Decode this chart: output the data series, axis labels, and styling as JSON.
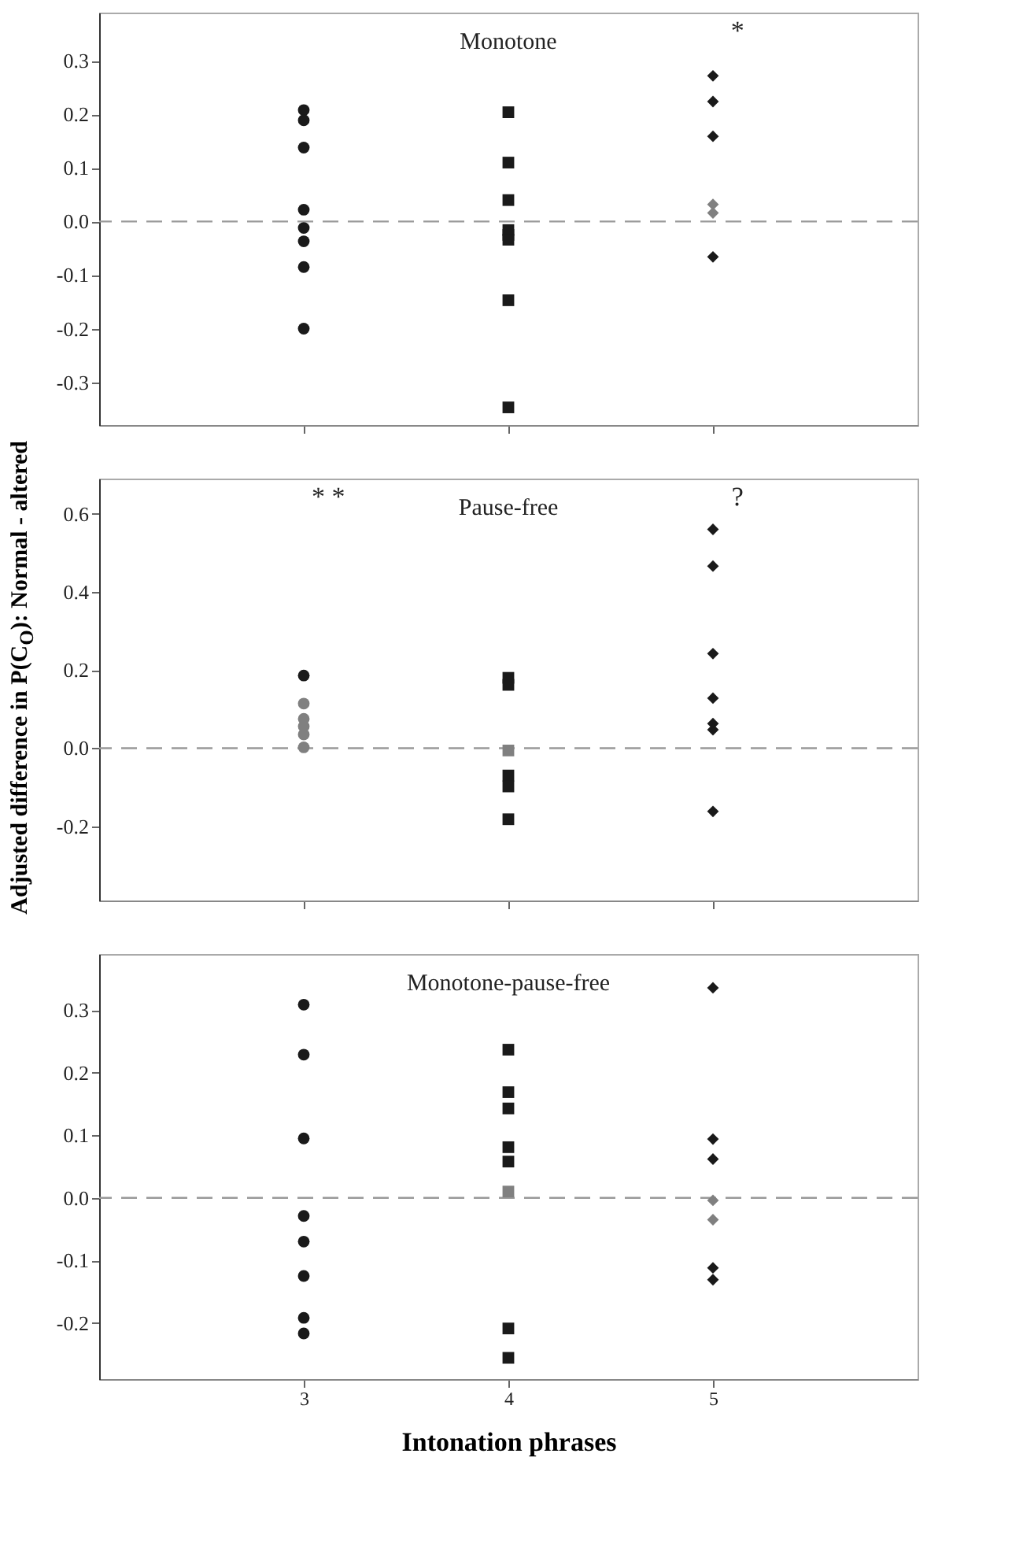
{
  "chart_data": [
    {
      "type": "scatter",
      "title": "Monotone",
      "xlim": [
        2,
        6
      ],
      "xticks": [
        3,
        4,
        5
      ],
      "tick_labels": "y",
      "ylim": [
        -0.38,
        0.39
      ],
      "yticks": [
        {
          "value": -0.3,
          "label": "-0.3"
        },
        {
          "value": -0.2,
          "label": "-0.2"
        },
        {
          "value": -0.1,
          "label": "-0.1"
        },
        {
          "value": 0,
          "label": "0.0"
        },
        {
          "value": 0.1,
          "label": "0.1"
        },
        {
          "value": 0.2,
          "label": "0.2"
        },
        {
          "value": 0.3,
          "label": "0.3"
        }
      ],
      "ref_lines": [
        {
          "axis": "y",
          "value": 0,
          "color": "#999999",
          "line_style": "dashed"
        }
      ],
      "annotations": [
        "*"
      ],
      "series": [
        {
          "color": "#1a1a1a",
          "marker": "circle",
          "x": [
            3,
            3,
            3,
            3,
            3,
            3,
            3,
            3
          ],
          "values": [
            0.208,
            0.189,
            0.138,
            0.022,
            -0.012,
            -0.037,
            -0.085,
            -0.2
          ]
        },
        {
          "color": "#1a1a1a",
          "marker": "square",
          "x": [
            4,
            4,
            4,
            4,
            4,
            4,
            4,
            4
          ],
          "values": [
            0.204,
            0.11,
            0.04,
            -0.016,
            -0.025,
            -0.034,
            -0.147,
            -0.347
          ]
        },
        {
          "color": "#1a1a1a",
          "marker": "diamond",
          "x": [
            5,
            5,
            5,
            5
          ],
          "values": [
            0.272,
            0.224,
            0.159,
            -0.066
          ]
        },
        {
          "color": "#808080",
          "marker": "diamond",
          "x": [
            5,
            5
          ],
          "values": [
            0.032,
            0.016
          ]
        }
      ]
    },
    {
      "type": "scatter",
      "title": "Pause-free",
      "ylabel": "Adjusted difference in P(C$_{O}$): Normal - altered",
      "xlim": [
        2,
        6
      ],
      "xticks": [
        3,
        4,
        5
      ],
      "tick_labels": "y",
      "ylim": [
        -0.39,
        0.69
      ],
      "yticks": [
        {
          "value": -0.2,
          "label": "-0.2"
        },
        {
          "value": 0,
          "label": "0.0"
        },
        {
          "value": 0.2,
          "label": "0.2"
        },
        {
          "value": 0.4,
          "label": "0.4"
        },
        {
          "value": 0.6,
          "label": "0.6"
        }
      ],
      "ref_lines": [
        {
          "axis": "y",
          "value": 0,
          "color": "#999999",
          "line_style": "dashed"
        }
      ],
      "annotations": [
        "* *",
        "?"
      ],
      "series": [
        {
          "color": "#1a1a1a",
          "marker": "circle",
          "x": [
            3
          ],
          "values": [
            0.186
          ]
        },
        {
          "color": "#808080",
          "marker": "circle",
          "x": [
            3,
            3,
            3,
            3,
            3
          ],
          "values": [
            0.114,
            0.075,
            0.056,
            0.035,
            0.002
          ]
        },
        {
          "color": "#1a1a1a",
          "marker": "square",
          "x": [
            4,
            4,
            4,
            4,
            4
          ],
          "values": [
            0.18,
            0.162,
            -0.07,
            -0.098,
            -0.182
          ]
        },
        {
          "color": "#808080",
          "marker": "square",
          "x": [
            4
          ],
          "values": [
            -0.006
          ]
        },
        {
          "color": "#1a1a1a",
          "marker": "diamond",
          "x": [
            5,
            5,
            5,
            5,
            5,
            5,
            5
          ],
          "values": [
            0.56,
            0.466,
            0.242,
            0.128,
            0.063,
            0.047,
            -0.162
          ]
        }
      ]
    },
    {
      "type": "scatter",
      "title": "Monotone-pause-free",
      "xlabel": "Intonation phrases",
      "xlim": [
        2,
        6
      ],
      "xticks": [
        3,
        4,
        5
      ],
      "ylim": [
        -0.29,
        0.39
      ],
      "yticks": [
        {
          "value": -0.2,
          "label": "-0.2"
        },
        {
          "value": -0.1,
          "label": "-0.1"
        },
        {
          "value": 0,
          "label": "0.0"
        },
        {
          "value": 0.1,
          "label": "0.1"
        },
        {
          "value": 0.2,
          "label": "0.2"
        },
        {
          "value": 0.3,
          "label": "0.3"
        }
      ],
      "ref_lines": [
        {
          "axis": "y",
          "value": 0,
          "color": "#999999",
          "line_style": "dashed"
        }
      ],
      "series": [
        {
          "color": "#1a1a1a",
          "marker": "circle",
          "x": [
            3,
            3,
            3,
            3,
            3,
            3,
            3,
            3
          ],
          "values": [
            0.309,
            0.229,
            0.095,
            -0.029,
            -0.07,
            -0.125,
            -0.192,
            -0.217
          ]
        },
        {
          "color": "#1a1a1a",
          "marker": "square",
          "x": [
            4,
            4,
            4,
            4,
            4,
            4,
            4
          ],
          "values": [
            0.237,
            0.169,
            0.143,
            0.081,
            0.058,
            -0.209,
            -0.256
          ]
        },
        {
          "color": "#808080",
          "marker": "square",
          "x": [
            4
          ],
          "values": [
            0.01
          ]
        },
        {
          "color": "#1a1a1a",
          "marker": "diamond",
          "x": [
            5,
            5,
            5,
            5,
            5
          ],
          "values": [
            0.336,
            0.094,
            0.062,
            -0.112,
            -0.131
          ]
        },
        {
          "color": "#808080",
          "marker": "diamond",
          "x": [
            5,
            5
          ],
          "values": [
            -0.004,
            -0.035
          ]
        }
      ]
    }
  ]
}
